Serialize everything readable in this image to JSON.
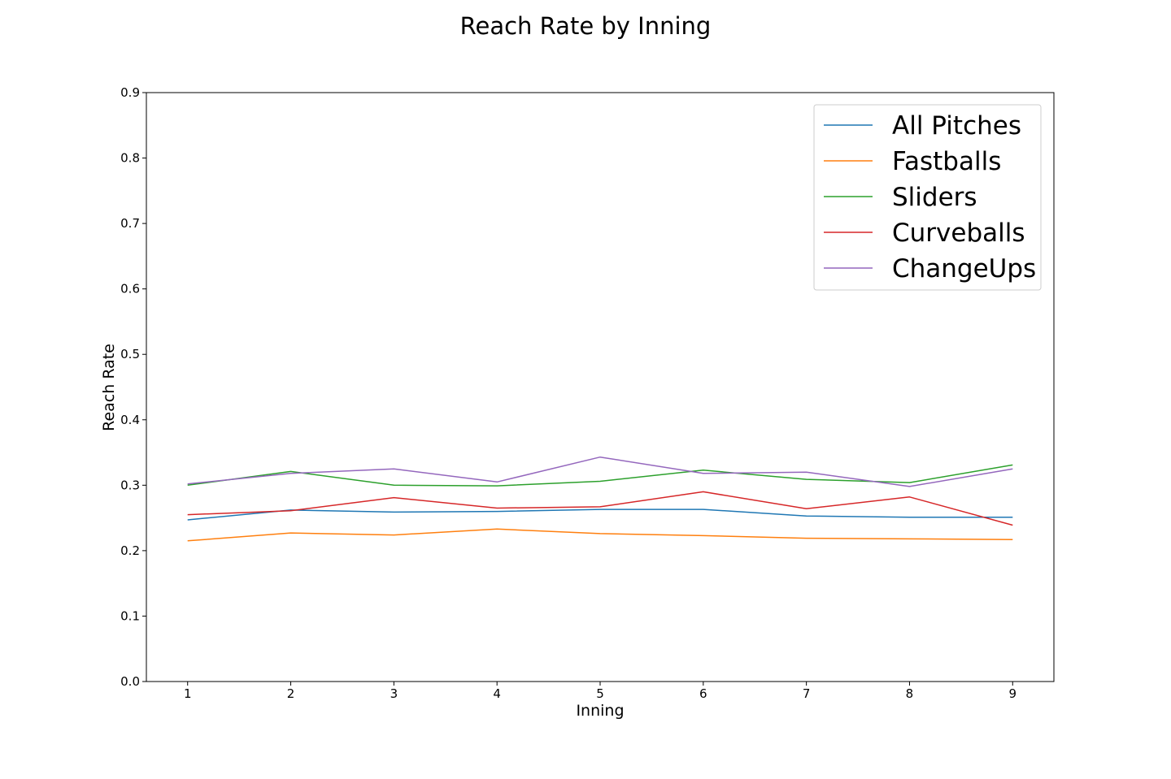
{
  "chart_data": {
    "type": "line",
    "title": "Reach Rate by Inning",
    "xlabel": "Inning",
    "ylabel": "Reach Rate",
    "x": [
      1,
      2,
      3,
      4,
      5,
      6,
      7,
      8,
      9
    ],
    "xlim": [
      0.6,
      9.4
    ],
    "ylim": [
      0,
      0.9
    ],
    "yticks": [
      0.0,
      0.1,
      0.2,
      0.3,
      0.4,
      0.5,
      0.6,
      0.7,
      0.8,
      0.9
    ],
    "ytick_labels": [
      "0.0",
      "0.1",
      "0.2",
      "0.3",
      "0.4",
      "0.5",
      "0.6",
      "0.7",
      "0.8",
      "0.9"
    ],
    "xtick_labels": [
      "1",
      "2",
      "3",
      "4",
      "5",
      "6",
      "7",
      "8",
      "9"
    ],
    "grid": false,
    "legend_position": "top-right",
    "series": [
      {
        "name": "All Pitches",
        "color": "#1f77b4",
        "values": [
          0.247,
          0.262,
          0.259,
          0.26,
          0.263,
          0.263,
          0.253,
          0.251,
          0.251
        ]
      },
      {
        "name": "Fastballs",
        "color": "#ff7f0e",
        "values": [
          0.215,
          0.227,
          0.224,
          0.233,
          0.226,
          0.223,
          0.219,
          0.218,
          0.217
        ]
      },
      {
        "name": "Sliders",
        "color": "#2ca02c",
        "values": [
          0.3,
          0.321,
          0.3,
          0.299,
          0.306,
          0.323,
          0.309,
          0.304,
          0.331
        ]
      },
      {
        "name": "Curveballs",
        "color": "#d62728",
        "values": [
          0.255,
          0.261,
          0.281,
          0.265,
          0.267,
          0.29,
          0.264,
          0.282,
          0.239
        ]
      },
      {
        "name": "ChangeUps",
        "color": "#9467bd",
        "values": [
          0.302,
          0.318,
          0.325,
          0.305,
          0.343,
          0.318,
          0.32,
          0.298,
          0.325
        ]
      }
    ]
  }
}
